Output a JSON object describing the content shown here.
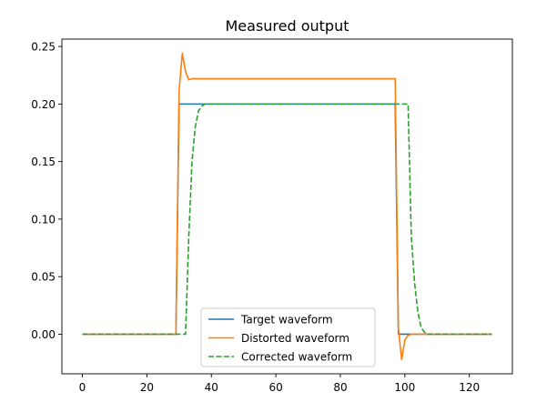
{
  "chart_data": {
    "type": "line",
    "title": "Measured output",
    "xlabel": "",
    "ylabel": "",
    "xlim": [
      -6.35,
      133.35
    ],
    "ylim": [
      -0.0344,
      0.2564
    ],
    "xticks": [
      0,
      20,
      40,
      60,
      80,
      100,
      120
    ],
    "yticks": [
      0.0,
      0.05,
      0.1,
      0.15,
      0.2,
      0.25
    ],
    "xtick_labels": [
      "0",
      "20",
      "40",
      "60",
      "80",
      "100",
      "120"
    ],
    "ytick_labels": [
      "0.00",
      "0.05",
      "0.10",
      "0.15",
      "0.20",
      "0.25"
    ],
    "grid": false,
    "legend_position": "lower center",
    "series": [
      {
        "name": "Target waveform",
        "color": "#1f77b4",
        "dash": "solid",
        "points": [
          [
            0,
            0
          ],
          [
            29,
            0
          ],
          [
            30,
            0.2
          ],
          [
            97,
            0.2
          ],
          [
            98,
            0
          ],
          [
            127,
            0
          ]
        ]
      },
      {
        "name": "Distorted waveform",
        "color": "#ff7f0e",
        "dash": "solid",
        "points": [
          [
            0,
            0
          ],
          [
            29,
            0
          ],
          [
            30,
            0.212
          ],
          [
            31,
            0.244
          ],
          [
            32,
            0.228
          ],
          [
            33,
            0.221
          ],
          [
            34,
            0.222
          ],
          [
            35,
            0.222
          ],
          [
            97,
            0.222
          ],
          [
            98,
            0.005
          ],
          [
            99,
            -0.022
          ],
          [
            100,
            -0.005
          ],
          [
            101,
            -0.001
          ],
          [
            102,
            0
          ],
          [
            127,
            0
          ]
        ]
      },
      {
        "name": "Corrected waveform",
        "color": "#2ca02c",
        "dash": "dashed",
        "points": [
          [
            0,
            0
          ],
          [
            32,
            0
          ],
          [
            33,
            0.085
          ],
          [
            34,
            0.15
          ],
          [
            35,
            0.18
          ],
          [
            36,
            0.194
          ],
          [
            37,
            0.198
          ],
          [
            38,
            0.2
          ],
          [
            101,
            0.2
          ],
          [
            102,
            0.085
          ],
          [
            103,
            0.045
          ],
          [
            104,
            0.02
          ],
          [
            105,
            0.006
          ],
          [
            106,
            0.002
          ],
          [
            107,
            0
          ],
          [
            127,
            0
          ]
        ]
      }
    ]
  }
}
